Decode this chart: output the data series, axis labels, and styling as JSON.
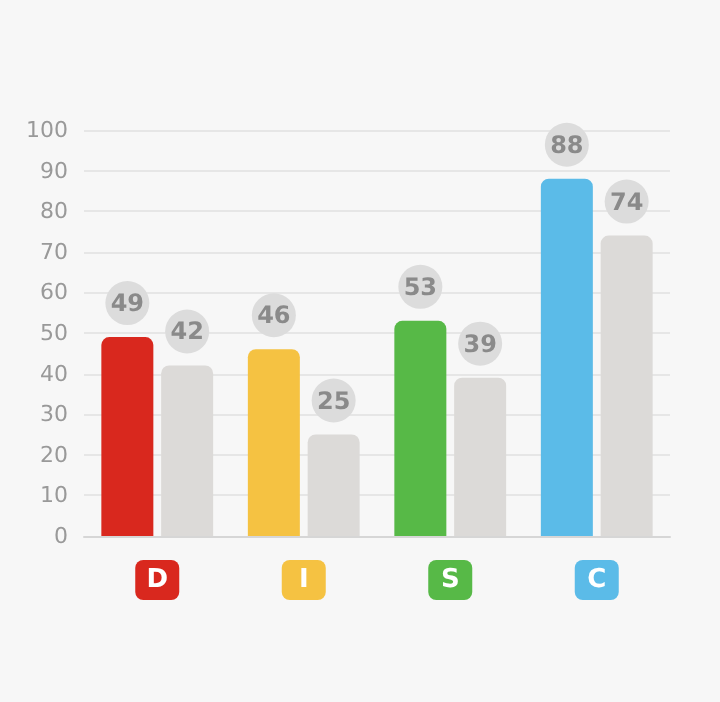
{
  "chart_data": {
    "type": "bar",
    "categories": [
      "D",
      "I",
      "S",
      "C"
    ],
    "series": [
      {
        "colors": [
          "#d9281e",
          "#f5c242",
          "#57b947",
          "#5bbbe8"
        ],
        "values": [
          49,
          46,
          53,
          88
        ]
      },
      {
        "color": "#dcdad8",
        "values": [
          42,
          25,
          39,
          74
        ]
      }
    ],
    "ylim": [
      0,
      100
    ],
    "yticks": [
      0,
      10,
      20,
      30,
      40,
      50,
      60,
      70,
      80,
      90,
      100
    ],
    "grid": "y",
    "data_labels": true
  }
}
